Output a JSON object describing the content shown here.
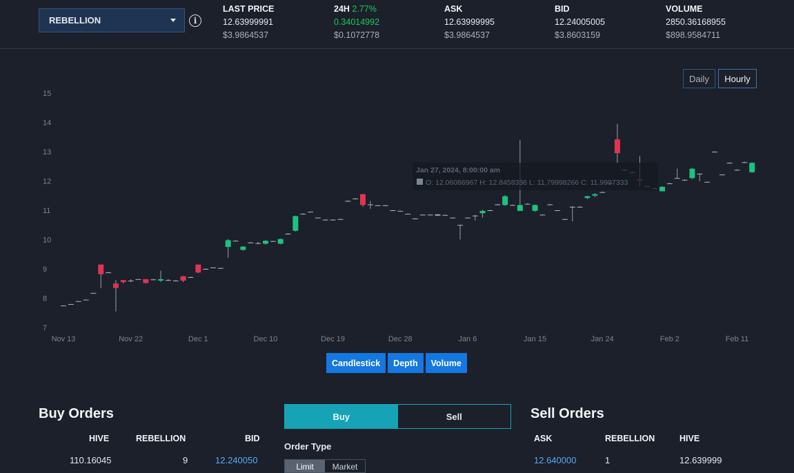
{
  "header": {
    "token": "REBELLION",
    "stats": [
      {
        "label": "LAST PRICE",
        "change": "",
        "value": "12.63999991",
        "usd": "$3.9864537"
      },
      {
        "label": "24H",
        "change": "2.77%",
        "value": "0.34014992",
        "usd": "$0.1072778"
      },
      {
        "label": "ASK",
        "change": "",
        "value": "12.63999995",
        "usd": "$3.9864537"
      },
      {
        "label": "BID",
        "change": "",
        "value": "12.24005005",
        "usd": "$3.8603159"
      },
      {
        "label": "VOLUME",
        "change": "",
        "value": "2850.36168955",
        "usd": "$898.9584711"
      }
    ]
  },
  "range_buttons": {
    "daily": "Daily",
    "hourly": "Hourly",
    "active": "hourly"
  },
  "chart_tabs": {
    "candlestick": "Candlestick",
    "depth": "Depth",
    "volume": "Volume"
  },
  "colors": {
    "up": "#1bc47d",
    "down": "#e0344f",
    "accent": "#1478e0",
    "teal": "#17a3b6"
  },
  "chart_data": {
    "type": "candlestick",
    "title": "",
    "xlabel": "",
    "ylabel": "",
    "ylim": [
      7,
      15
    ],
    "yticks": [
      "7",
      "8",
      "9",
      "10",
      "11",
      "12",
      "13",
      "14",
      "15"
    ],
    "x_ticks": [
      {
        "label": "Nov 13",
        "index": 0
      },
      {
        "label": "Nov 22",
        "index": 9
      },
      {
        "label": "Dec 1",
        "index": 18
      },
      {
        "label": "Dec 10",
        "index": 27
      },
      {
        "label": "Dec 19",
        "index": 36
      },
      {
        "label": "Dec 28",
        "index": 45
      },
      {
        "label": "Jan 6",
        "index": 54
      },
      {
        "label": "Jan 15",
        "index": 63
      },
      {
        "label": "Jan 24",
        "index": 72
      },
      {
        "label": "Feb 2",
        "index": 81
      },
      {
        "label": "Feb 11",
        "index": 90
      }
    ],
    "candles": [
      [
        7.75,
        7.75,
        7.74,
        7.74
      ],
      [
        7.8,
        7.8,
        7.79,
        7.79
      ],
      [
        7.9,
        7.9,
        7.89,
        7.89
      ],
      [
        7.95,
        7.95,
        7.94,
        7.94
      ],
      [
        8.18,
        8.18,
        8.17,
        8.17
      ],
      [
        9.15,
        9.15,
        8.35,
        8.82
      ],
      [
        8.88,
        8.9,
        8.87,
        8.88
      ],
      [
        8.5,
        8.62,
        7.55,
        8.35
      ],
      [
        8.62,
        8.62,
        8.5,
        8.55
      ],
      [
        8.6,
        8.65,
        8.55,
        8.6
      ],
      [
        8.65,
        8.65,
        8.64,
        8.65
      ],
      [
        8.65,
        8.65,
        8.5,
        8.52
      ],
      [
        8.64,
        8.66,
        8.63,
        8.64
      ],
      [
        8.6,
        8.94,
        8.55,
        8.65
      ],
      [
        8.6,
        8.65,
        8.59,
        8.62
      ],
      [
        8.6,
        8.62,
        8.58,
        8.6
      ],
      [
        8.75,
        8.76,
        8.55,
        8.6
      ],
      [
        8.72,
        8.74,
        8.7,
        8.72
      ],
      [
        9.15,
        9.15,
        8.85,
        8.88
      ],
      [
        9.0,
        9.02,
        8.98,
        9.0
      ],
      [
        9.05,
        9.05,
        9.04,
        9.04
      ],
      [
        9.03,
        9.04,
        9.02,
        9.03
      ],
      [
        9.75,
        10.02,
        9.38,
        9.98
      ],
      [
        9.96,
        9.98,
        9.95,
        9.96
      ],
      [
        9.65,
        9.78,
        9.62,
        9.76
      ],
      [
        9.9,
        9.92,
        9.88,
        9.9
      ],
      [
        9.88,
        9.92,
        9.84,
        9.86
      ],
      [
        9.86,
        9.98,
        9.83,
        9.96
      ],
      [
        9.95,
        9.96,
        9.94,
        9.95
      ],
      [
        9.86,
        10.04,
        9.84,
        10.02
      ],
      [
        10.2,
        10.22,
        10.18,
        10.2
      ],
      [
        10.3,
        10.82,
        10.28,
        10.8
      ],
      [
        10.88,
        10.9,
        10.86,
        10.88
      ],
      [
        10.95,
        10.96,
        10.94,
        10.95
      ],
      [
        10.75,
        10.76,
        10.74,
        10.75
      ],
      [
        10.68,
        10.69,
        10.67,
        10.68
      ],
      [
        10.68,
        10.69,
        10.67,
        10.68
      ],
      [
        10.7,
        10.71,
        10.69,
        10.7
      ],
      [
        11.32,
        11.34,
        11.3,
        11.32
      ],
      [
        11.4,
        11.42,
        11.38,
        11.4
      ],
      [
        11.55,
        11.56,
        11.12,
        11.18
      ],
      [
        11.2,
        11.32,
        11.05,
        11.18
      ],
      [
        11.17,
        11.18,
        11.16,
        11.17
      ],
      [
        11.17,
        11.18,
        11.16,
        11.17
      ],
      [
        11.0,
        11.01,
        10.99,
        11.0
      ],
      [
        10.98,
        10.99,
        10.97,
        10.98
      ],
      [
        10.88,
        10.89,
        10.87,
        10.88
      ],
      [
        10.72,
        10.73,
        10.71,
        10.72
      ],
      [
        10.85,
        10.86,
        10.84,
        10.85
      ],
      [
        10.85,
        10.86,
        10.84,
        10.85
      ],
      [
        10.82,
        10.87,
        10.8,
        10.86
      ],
      [
        10.84,
        10.85,
        10.83,
        10.84
      ],
      [
        10.75,
        10.76,
        10.74,
        10.75
      ],
      [
        10.5,
        10.5,
        10.0,
        10.48
      ],
      [
        10.75,
        10.76,
        10.74,
        10.75
      ],
      [
        10.82,
        10.84,
        10.65,
        10.8
      ],
      [
        10.9,
        11.02,
        10.75,
        10.98
      ],
      [
        11.0,
        11.02,
        10.98,
        11.0
      ],
      [
        11.2,
        11.22,
        11.18,
        11.2
      ],
      [
        11.18,
        11.52,
        11.15,
        11.48
      ],
      [
        11.18,
        11.2,
        11.16,
        11.18
      ],
      [
        10.98,
        13.4,
        10.98,
        11.18
      ],
      [
        11.22,
        11.24,
        11.2,
        11.22
      ],
      [
        10.98,
        11.2,
        10.95,
        11.18
      ],
      [
        10.85,
        10.86,
        10.84,
        10.85
      ],
      [
        11.2,
        11.22,
        11.18,
        11.2
      ],
      [
        11.0,
        11.01,
        10.99,
        11.0
      ],
      [
        10.7,
        10.71,
        10.69,
        10.7
      ],
      [
        11.12,
        11.14,
        10.62,
        11.12
      ],
      [
        11.12,
        11.14,
        11.1,
        11.12
      ],
      [
        11.42,
        11.5,
        11.38,
        11.48
      ],
      [
        11.5,
        11.58,
        11.45,
        11.55
      ],
      [
        11.62,
        11.64,
        11.6,
        11.62
      ],
      [
        11.9,
        11.95,
        11.88,
        11.92
      ],
      [
        13.42,
        13.95,
        12.62,
        12.95
      ],
      [
        12.38,
        12.4,
        12.36,
        12.38
      ],
      [
        12.3,
        12.32,
        12.28,
        12.3
      ],
      [
        12.06,
        12.85,
        11.8,
        12.0
      ],
      [
        11.82,
        11.83,
        11.81,
        11.82
      ],
      [
        11.75,
        11.77,
        11.73,
        11.75
      ],
      [
        11.65,
        11.82,
        11.64,
        11.8
      ],
      [
        11.92,
        11.94,
        11.9,
        11.92
      ],
      [
        12.1,
        12.42,
        12.08,
        12.1
      ],
      [
        12.02,
        12.05,
        12.0,
        12.04
      ],
      [
        12.1,
        12.45,
        12.06,
        12.42
      ],
      [
        12.25,
        12.26,
        11.99,
        12.25
      ],
      [
        11.97,
        11.98,
        11.96,
        11.97
      ],
      [
        13.0,
        13.01,
        12.99,
        13.0
      ],
      [
        12.22,
        12.23,
        12.21,
        12.22
      ],
      [
        12.62,
        12.64,
        12.6,
        12.62
      ],
      [
        12.38,
        12.4,
        12.36,
        12.38
      ],
      [
        12.64,
        12.66,
        12.62,
        12.64
      ],
      [
        12.3,
        12.64,
        12.28,
        12.62
      ]
    ],
    "tooltip": {
      "date": "Jan 27, 2024, 8:00:00 am",
      "o": "12.06086967",
      "h": "12.8458336",
      "l": "11.79998266",
      "c": "11.9997333"
    }
  },
  "buy_orders": {
    "title": "Buy Orders",
    "columns": [
      "HIVE",
      "REBELLION",
      "BID"
    ],
    "rows": [
      [
        "110.16045",
        "9",
        "12.240050"
      ]
    ]
  },
  "order_form": {
    "buy": "Buy",
    "sell": "Sell",
    "order_type_label": "Order Type",
    "limit": "Limit",
    "market": "Market"
  },
  "sell_orders": {
    "title": "Sell Orders",
    "columns": [
      "ASK",
      "REBELLION",
      "HIVE"
    ],
    "rows": [
      [
        "12.640000",
        "1",
        "12.639999"
      ]
    ]
  }
}
